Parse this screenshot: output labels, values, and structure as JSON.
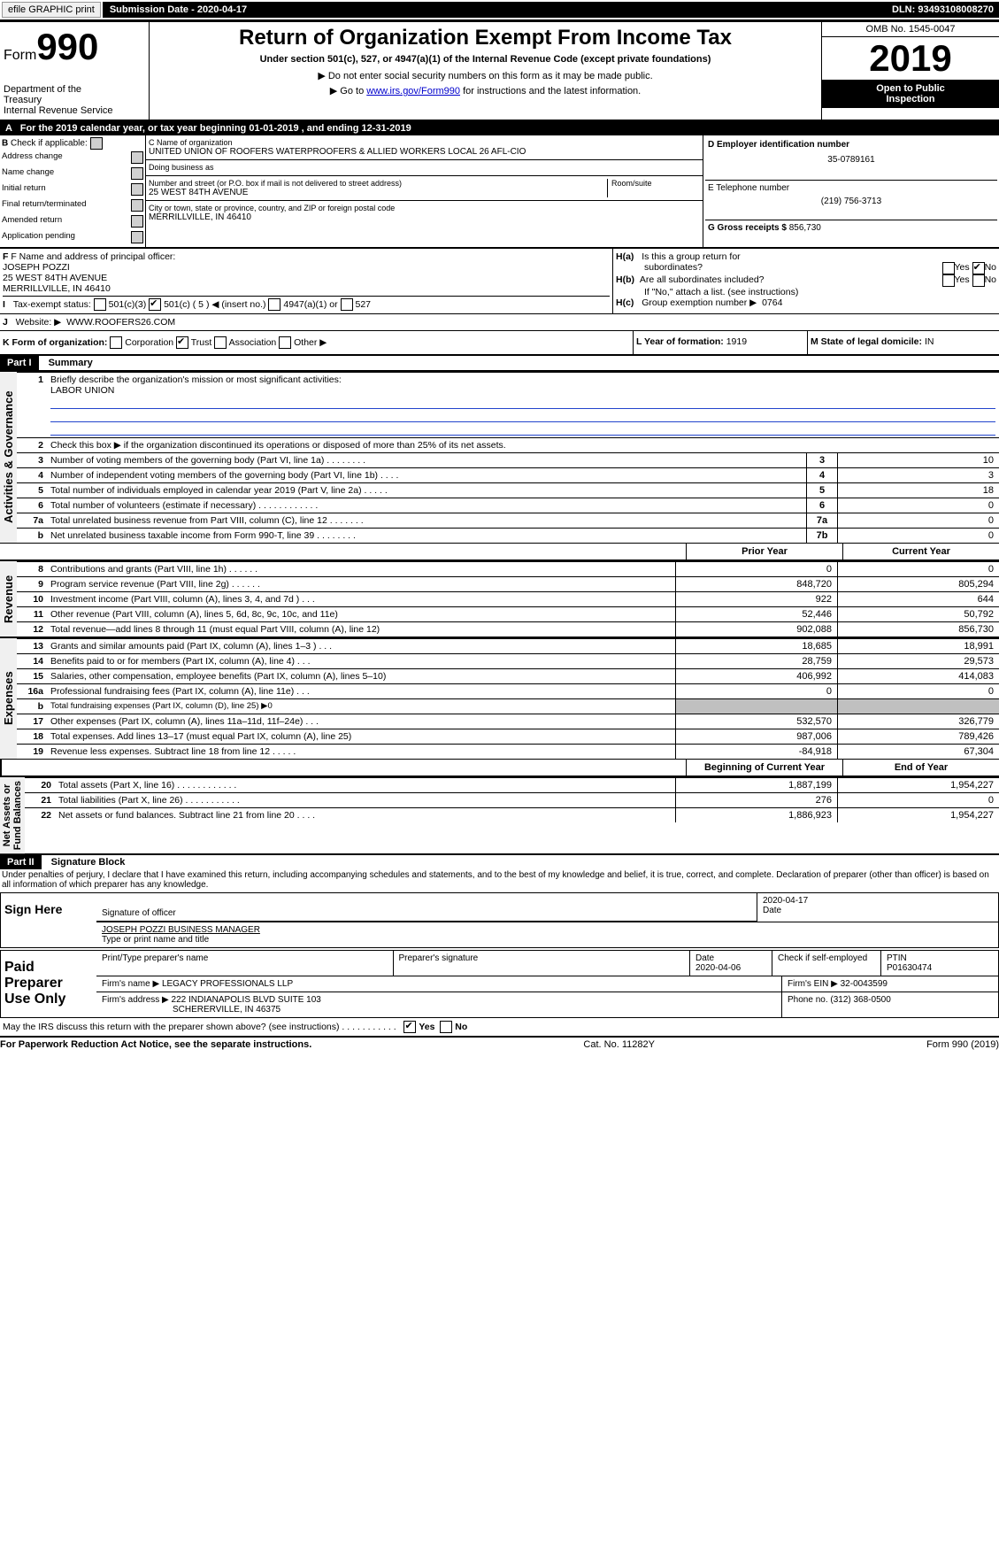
{
  "topbar": {
    "efile": "efile GRAPHIC print",
    "submission_label": "Submission Date - ",
    "submission_date": "2020-04-17",
    "dln_label": "DLN: ",
    "dln": "93493108008270"
  },
  "header": {
    "form_label": "Form",
    "form_number": "990",
    "dept1": "Department of the",
    "dept2": "Treasury",
    "dept3": "Internal Revenue Service",
    "title": "Return of Organization Exempt From Income Tax",
    "subtitle": "Under section 501(c), 527, or 4947(a)(1) of the Internal Revenue Code (except private foundations)",
    "note1": "▶ Do not enter social security numbers on this form as it may be made public.",
    "note2_pre": "▶ Go to ",
    "note2_link": "www.irs.gov/Form990",
    "note2_post": " for instructions and the latest information.",
    "omb": "OMB No. 1545-0047",
    "year": "2019",
    "open": "Open to Public\nInspection"
  },
  "line_a": "For the 2019 calendar year, or tax year beginning 01-01-2019   , and ending 12-31-2019",
  "box_b": {
    "title": "Check if applicable:",
    "items": [
      "Address change",
      "Name change",
      "Initial return",
      "Final return/terminated",
      "Amended return",
      "Application pending"
    ]
  },
  "box_c": {
    "label": "C Name of organization",
    "name": "UNITED UNION OF ROOFERS WATERPROOFERS & ALLIED WORKERS LOCAL 26 AFL-CIO",
    "dba_label": "Doing business as",
    "addr_label": "Number and street (or P.O. box if mail is not delivered to street address)",
    "room_label": "Room/suite",
    "addr": "25 WEST 84TH AVENUE",
    "city_label": "City or town, state or province, country, and ZIP or foreign postal code",
    "city": "MERRILLVILLE, IN  46410"
  },
  "box_d": {
    "label": "D Employer identification number",
    "val": "35-0789161"
  },
  "box_e": {
    "label": "E Telephone number",
    "val": "(219) 756-3713"
  },
  "box_g": {
    "label": "G Gross receipts $ ",
    "val": "856,730"
  },
  "box_f": {
    "label": "F Name and address of principal officer:",
    "name": "JOSEPH POZZI",
    "addr1": "25 WEST 84TH AVENUE",
    "addr2": "MERRILLVILLE, IN  46410"
  },
  "box_h": {
    "ha_label": "Is this a group return for",
    "ha_label2": "subordinates?",
    "hb_label": "Are all subordinates included?",
    "hb_note": "If \"No,\" attach a list. (see instructions)",
    "hc_label": "Group exemption number ▶",
    "hc_val": "0764",
    "yes": "Yes",
    "no": "No"
  },
  "box_i": {
    "label": "Tax-exempt status:",
    "opts": [
      "501(c)(3)",
      "501(c) ( 5 ) ◀ (insert no.)",
      "4947(a)(1) or",
      "527"
    ]
  },
  "box_j": {
    "label": "Website: ▶",
    "val": "WWW.ROOFERS26.COM"
  },
  "box_k": {
    "label": "K Form of organization:",
    "opts": [
      "Corporation",
      "Trust",
      "Association",
      "Other ▶"
    ]
  },
  "box_l": {
    "label": "L Year of formation: ",
    "val": "1919"
  },
  "box_m": {
    "label": "M State of legal domicile: ",
    "val": "IN"
  },
  "part1": {
    "label": "Part I",
    "title": "Summary"
  },
  "sec_gov": {
    "label": "Activities & Governance",
    "l1": "Briefly describe the organization's mission or most significant activities:",
    "l1_val": "LABOR UNION",
    "l2": "Check this box ▶       if the organization discontinued its operations or disposed of more than 25% of its net assets.",
    "rows": [
      {
        "n": "3",
        "t": "Number of voting members of the governing body (Part VI, line 1a)   .    .    .    .    .    .    .    .",
        "b": "3",
        "v": "10"
      },
      {
        "n": "4",
        "t": "Number of independent voting members of the governing body (Part VI, line 1b)   .    .    .    .",
        "b": "4",
        "v": "3"
      },
      {
        "n": "5",
        "t": "Total number of individuals employed in calendar year 2019 (Part V, line 2a)   .    .    .    .    .",
        "b": "5",
        "v": "18"
      },
      {
        "n": "6",
        "t": "Total number of volunteers (estimate if necessary)   .    .    .    .    .    .    .    .    .    .    .    .",
        "b": "6",
        "v": "0"
      },
      {
        "n": "7a",
        "t": "Total unrelated business revenue from Part VIII, column (C), line 12   .    .    .    .    .    .    .",
        "b": "7a",
        "v": "0"
      },
      {
        "n": "b",
        "t": "Net unrelated business taxable income from Form 990-T, line 39   .    .    .    .    .    .    .    .",
        "b": "7b",
        "v": "0"
      }
    ]
  },
  "col_headers": {
    "prior": "Prior Year",
    "current": "Current Year",
    "boy": "Beginning of Current Year",
    "eoy": "End of Year"
  },
  "sec_rev": {
    "label": "Revenue",
    "rows": [
      {
        "n": "8",
        "t": "Contributions and grants (Part VIII, line 1h)   .    .    .    .    .    .",
        "p": "0",
        "c": "0"
      },
      {
        "n": "9",
        "t": "Program service revenue (Part VIII, line 2g)   .    .    .    .    .    .",
        "p": "848,720",
        "c": "805,294"
      },
      {
        "n": "10",
        "t": "Investment income (Part VIII, column (A), lines 3, 4, and 7d )   .    .    .",
        "p": "922",
        "c": "644"
      },
      {
        "n": "11",
        "t": "Other revenue (Part VIII, column (A), lines 5, 6d, 8c, 9c, 10c, and 11e)",
        "p": "52,446",
        "c": "50,792"
      },
      {
        "n": "12",
        "t": "Total revenue—add lines 8 through 11 (must equal Part VIII, column (A), line 12)",
        "p": "902,088",
        "c": "856,730"
      }
    ]
  },
  "sec_exp": {
    "label": "Expenses",
    "rows": [
      {
        "n": "13",
        "t": "Grants and similar amounts paid (Part IX, column (A), lines 1–3 )   .    .    .",
        "p": "18,685",
        "c": "18,991"
      },
      {
        "n": "14",
        "t": "Benefits paid to or for members (Part IX, column (A), line 4)   .    .    .",
        "p": "28,759",
        "c": "29,573"
      },
      {
        "n": "15",
        "t": "Salaries, other compensation, employee benefits (Part IX, column (A), lines 5–10)",
        "p": "406,992",
        "c": "414,083"
      },
      {
        "n": "16a",
        "t": "Professional fundraising fees (Part IX, column (A), line 11e)   .    .    .",
        "p": "0",
        "c": "0"
      },
      {
        "n": "b",
        "t": "Total fundraising expenses (Part IX, column (D), line 25) ▶0",
        "p": "",
        "c": "",
        "shaded": true,
        "small": true
      },
      {
        "n": "17",
        "t": "Other expenses (Part IX, column (A), lines 11a–11d, 11f–24e)   .    .    .",
        "p": "532,570",
        "c": "326,779"
      },
      {
        "n": "18",
        "t": "Total expenses. Add lines 13–17 (must equal Part IX, column (A), line 25)",
        "p": "987,006",
        "c": "789,426"
      },
      {
        "n": "19",
        "t": "Revenue less expenses. Subtract line 18 from line 12   .    .    .    .    .",
        "p": "-84,918",
        "c": "67,304"
      }
    ]
  },
  "sec_net": {
    "label": "Net Assets or\nFund Balances",
    "rows": [
      {
        "n": "20",
        "t": "Total assets (Part X, line 16)   .    .    .    .    .    .    .    .    .    .    .    .",
        "p": "1,887,199",
        "c": "1,954,227"
      },
      {
        "n": "21",
        "t": "Total liabilities (Part X, line 26)   .    .    .    .    .    .    .    .    .    .    .",
        "p": "276",
        "c": "0"
      },
      {
        "n": "22",
        "t": "Net assets or fund balances. Subtract line 21 from line 20   .    .    .    .",
        "p": "1,886,923",
        "c": "1,954,227"
      }
    ]
  },
  "part2": {
    "label": "Part II",
    "title": "Signature Block"
  },
  "perjury": "Under penalties of perjury, I declare that I have examined this return, including accompanying schedules and statements, and to the best of my knowledge and belief, it is true, correct, and complete. Declaration of preparer (other than officer) is based on all information of which preparer has any knowledge.",
  "sign": {
    "here": "Sign Here",
    "sig_officer": "Signature of officer",
    "date": "Date",
    "date_val": "2020-04-17",
    "name": "JOSEPH POZZI  BUSINESS MANAGER",
    "name_label": "Type or print name and title"
  },
  "paid": {
    "label": "Paid\nPreparer\nUse Only",
    "col1": "Print/Type preparer's name",
    "col2": "Preparer's signature",
    "col3": "Date",
    "date": "2020-04-06",
    "check_label": "Check        if self-employed",
    "ptin_label": "PTIN",
    "ptin": "P01630474",
    "firm_name_label": "Firm's name    ▶",
    "firm_name": "LEGACY PROFESSIONALS LLP",
    "firm_ein_label": "Firm's EIN ▶",
    "firm_ein": "32-0043599",
    "firm_addr_label": "Firm's address ▶",
    "firm_addr1": "222 INDIANAPOLIS BLVD SUITE 103",
    "firm_addr2": "SCHERERVILLE, IN  46375",
    "phone_label": "Phone no. ",
    "phone": "(312) 368-0500"
  },
  "discuss": "May the IRS discuss this return with the preparer shown above? (see instructions)   .    .    .    .    .    .    .    .    .    .    .",
  "footer": {
    "left": "For Paperwork Reduction Act Notice, see the separate instructions.",
    "mid": "Cat. No. 11282Y",
    "right": "Form 990 (2019)"
  }
}
